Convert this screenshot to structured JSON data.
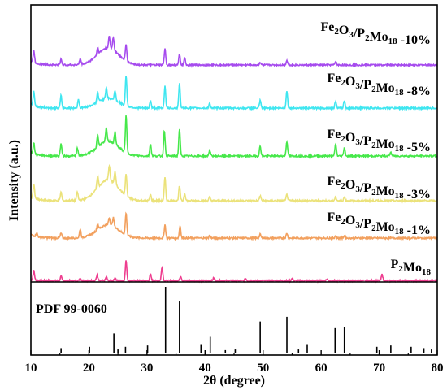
{
  "chart_data": {
    "type": "line",
    "xlabel": "2θ (degree)",
    "ylabel": "Intensity (a.u.)",
    "xlim": [
      10,
      80
    ],
    "xticks": [
      10,
      20,
      30,
      40,
      50,
      60,
      70,
      80
    ],
    "grid": false,
    "reference": {
      "label": "PDF 99-0060",
      "color": "#000000",
      "peaks": [
        {
          "x": 15.2,
          "h": 0.08
        },
        {
          "x": 20.1,
          "h": 0.1
        },
        {
          "x": 24.3,
          "h": 0.3
        },
        {
          "x": 25.0,
          "h": 0.06
        },
        {
          "x": 26.3,
          "h": 0.1
        },
        {
          "x": 30.1,
          "h": 0.12
        },
        {
          "x": 33.2,
          "h": 1.0
        },
        {
          "x": 35.6,
          "h": 0.78
        },
        {
          "x": 39.3,
          "h": 0.14
        },
        {
          "x": 40.9,
          "h": 0.25
        },
        {
          "x": 43.5,
          "h": 0.05
        },
        {
          "x": 45.2,
          "h": 0.06
        },
        {
          "x": 49.5,
          "h": 0.48
        },
        {
          "x": 54.1,
          "h": 0.55
        },
        {
          "x": 56.1,
          "h": 0.06
        },
        {
          "x": 57.6,
          "h": 0.14
        },
        {
          "x": 62.4,
          "h": 0.38
        },
        {
          "x": 64.0,
          "h": 0.4
        },
        {
          "x": 69.6,
          "h": 0.1
        },
        {
          "x": 72.0,
          "h": 0.12
        },
        {
          "x": 75.5,
          "h": 0.1
        },
        {
          "x": 77.7,
          "h": 0.08
        },
        {
          "x": 79.0,
          "h": 0.06
        }
      ]
    },
    "series": [
      {
        "name": "P2Mo18",
        "label_main": "P",
        "label_sub1": "2",
        "label_mid": "Mo",
        "label_sub2": "18",
        "label_tail": "",
        "color": "#ee3d8f",
        "baseline": 0.02,
        "amp_hump": 0.0,
        "peaks": [
          {
            "x": 10.5,
            "h": 0.45
          },
          {
            "x": 15.2,
            "h": 0.2
          },
          {
            "x": 18.5,
            "h": 0.12
          },
          {
            "x": 21.4,
            "h": 0.25
          },
          {
            "x": 23.0,
            "h": 0.18
          },
          {
            "x": 24.5,
            "h": 0.15
          },
          {
            "x": 26.4,
            "h": 0.95
          },
          {
            "x": 30.6,
            "h": 0.3
          },
          {
            "x": 32.6,
            "h": 0.65
          },
          {
            "x": 35.8,
            "h": 0.22
          },
          {
            "x": 41.5,
            "h": 0.12
          },
          {
            "x": 47.0,
            "h": 0.1
          },
          {
            "x": 55.0,
            "h": 0.1
          },
          {
            "x": 61.0,
            "h": 0.08
          },
          {
            "x": 70.5,
            "h": 0.3
          }
        ]
      },
      {
        "name": "Fe2O3/P2Mo18 -1%",
        "label_main": "Fe",
        "label_sub1": "2",
        "label_mid": "O",
        "label_sub2": "3",
        "label_tail": "/P₂Mo₁₈ -1%",
        "color": "#f2a05e",
        "baseline": 0.0,
        "amp_hump": 0.55,
        "peaks": [
          {
            "x": 11.0,
            "h": 0.15
          },
          {
            "x": 15.2,
            "h": 0.2
          },
          {
            "x": 18.5,
            "h": 0.35
          },
          {
            "x": 21.5,
            "h": 0.25
          },
          {
            "x": 23.5,
            "h": 0.3
          },
          {
            "x": 24.2,
            "h": 0.35
          },
          {
            "x": 26.4,
            "h": 0.9
          },
          {
            "x": 33.1,
            "h": 0.55
          },
          {
            "x": 35.7,
            "h": 0.5
          },
          {
            "x": 40.8,
            "h": 0.1
          },
          {
            "x": 49.5,
            "h": 0.15
          },
          {
            "x": 54.1,
            "h": 0.2
          },
          {
            "x": 62.5,
            "h": 0.1
          },
          {
            "x": 64.0,
            "h": 0.1
          }
        ]
      },
      {
        "name": "Fe2O3/P2Mo18 -3%",
        "label_main": "Fe",
        "label_sub1": "2",
        "label_mid": "O",
        "label_sub2": "3",
        "label_tail": "/P₂Mo₁₈ -3%",
        "color": "#ebe27a",
        "baseline": 0.0,
        "amp_hump": 0.85,
        "peaks": [
          {
            "x": 10.5,
            "h": 0.6
          },
          {
            "x": 15.2,
            "h": 0.35
          },
          {
            "x": 18.0,
            "h": 0.35
          },
          {
            "x": 21.5,
            "h": 0.5
          },
          {
            "x": 23.5,
            "h": 0.6
          },
          {
            "x": 24.5,
            "h": 0.5
          },
          {
            "x": 26.4,
            "h": 0.9
          },
          {
            "x": 30.6,
            "h": 0.25
          },
          {
            "x": 33.1,
            "h": 0.95
          },
          {
            "x": 35.6,
            "h": 0.6
          },
          {
            "x": 36.5,
            "h": 0.3
          },
          {
            "x": 40.8,
            "h": 0.15
          },
          {
            "x": 49.5,
            "h": 0.2
          },
          {
            "x": 54.1,
            "h": 0.25
          },
          {
            "x": 62.5,
            "h": 0.15
          },
          {
            "x": 64.0,
            "h": 0.15
          }
        ]
      },
      {
        "name": "Fe2O3/P2Mo18 -5%",
        "label_main": "Fe",
        "label_sub1": "2",
        "label_mid": "O",
        "label_sub2": "3",
        "label_tail": "/P₂Mo₁₈ -5%",
        "color": "#46e84a",
        "baseline": 0.0,
        "amp_hump": 0.6,
        "peaks": [
          {
            "x": 10.5,
            "h": 0.45
          },
          {
            "x": 15.2,
            "h": 0.5
          },
          {
            "x": 18.0,
            "h": 0.3
          },
          {
            "x": 21.5,
            "h": 0.5
          },
          {
            "x": 23.0,
            "h": 0.55
          },
          {
            "x": 24.5,
            "h": 0.5
          },
          {
            "x": 26.4,
            "h": 1.5
          },
          {
            "x": 30.6,
            "h": 0.5
          },
          {
            "x": 33.0,
            "h": 1.05
          },
          {
            "x": 35.6,
            "h": 1.1
          },
          {
            "x": 40.8,
            "h": 0.25
          },
          {
            "x": 49.5,
            "h": 0.4
          },
          {
            "x": 54.1,
            "h": 0.6
          },
          {
            "x": 62.5,
            "h": 0.5
          },
          {
            "x": 64.0,
            "h": 0.35
          },
          {
            "x": 72.0,
            "h": 0.15
          }
        ]
      },
      {
        "name": "Fe2O3/P2Mo18 -8%",
        "label_main": "Fe",
        "label_sub1": "2",
        "label_mid": "O",
        "label_sub2": "3",
        "label_tail": "/P₂Mo₁₈ -8%",
        "color": "#3fe6f0",
        "baseline": 0.0,
        "amp_hump": 0.4,
        "peaks": [
          {
            "x": 10.5,
            "h": 0.6
          },
          {
            "x": 15.2,
            "h": 0.5
          },
          {
            "x": 18.2,
            "h": 0.35
          },
          {
            "x": 21.5,
            "h": 0.4
          },
          {
            "x": 23.0,
            "h": 0.45
          },
          {
            "x": 24.5,
            "h": 0.4
          },
          {
            "x": 26.4,
            "h": 1.25
          },
          {
            "x": 30.6,
            "h": 0.3
          },
          {
            "x": 33.1,
            "h": 0.9
          },
          {
            "x": 35.6,
            "h": 1.0
          },
          {
            "x": 40.8,
            "h": 0.2
          },
          {
            "x": 49.5,
            "h": 0.3
          },
          {
            "x": 54.1,
            "h": 0.7
          },
          {
            "x": 62.5,
            "h": 0.3
          },
          {
            "x": 64.0,
            "h": 0.3
          }
        ]
      },
      {
        "name": "Fe2O3/P2Mo18 -10%",
        "label_main": "Fe",
        "label_sub1": "2",
        "label_mid": "O",
        "label_sub2": "3",
        "label_tail": "/P₂Mo₁₈ -10%",
        "color": "#a64bee",
        "baseline": 0.0,
        "amp_hump": 0.75,
        "peaks": [
          {
            "x": 10.5,
            "h": 0.55
          },
          {
            "x": 15.2,
            "h": 0.25
          },
          {
            "x": 18.5,
            "h": 0.25
          },
          {
            "x": 21.5,
            "h": 0.3
          },
          {
            "x": 23.5,
            "h": 0.5
          },
          {
            "x": 24.2,
            "h": 0.55
          },
          {
            "x": 26.4,
            "h": 0.7
          },
          {
            "x": 33.1,
            "h": 0.7
          },
          {
            "x": 35.6,
            "h": 0.45
          },
          {
            "x": 36.5,
            "h": 0.3
          },
          {
            "x": 49.5,
            "h": 0.12
          },
          {
            "x": 54.1,
            "h": 0.2
          },
          {
            "x": 62.5,
            "h": 0.15
          }
        ]
      }
    ]
  }
}
